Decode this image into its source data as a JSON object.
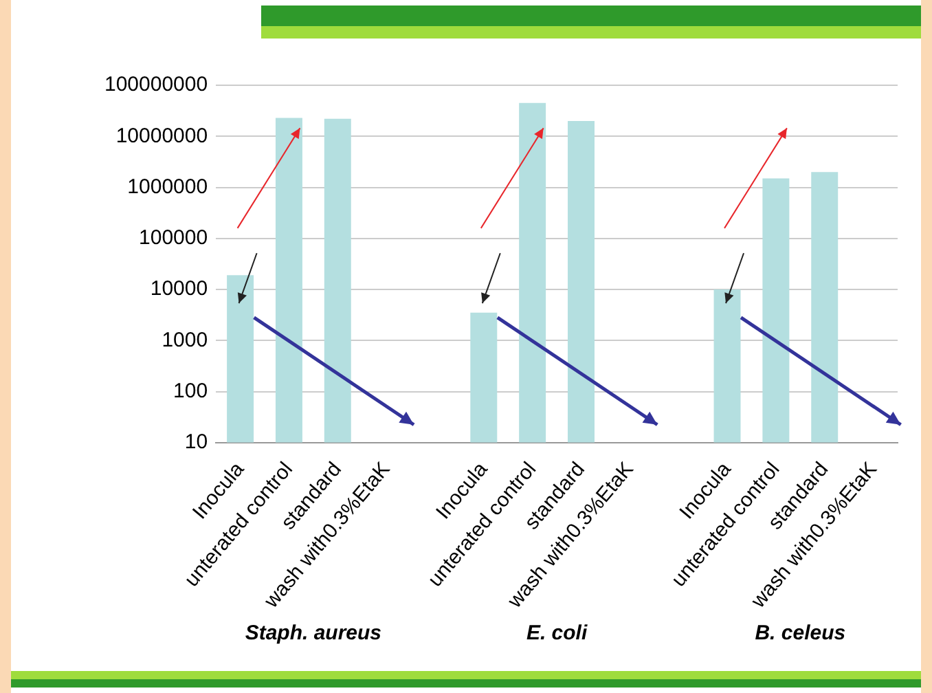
{
  "chart_data": {
    "type": "bar",
    "log": "y",
    "grid": "y",
    "legend": false,
    "color": "#b4dfe0",
    "categories": [
      "Inocula",
      "unterated control",
      "standard",
      "wash with0.3%EtaK",
      null,
      "Inocula",
      "unterated control",
      "standard",
      "wash with0.3%EtaK",
      null,
      "Inocula",
      "unterated control",
      "standard",
      "wash with0.3%EtaK"
    ],
    "values": [
      19000,
      23000000,
      22000000,
      null,
      null,
      3500,
      45000000,
      20000000,
      null,
      null,
      10000,
      1500000,
      2000000,
      null
    ],
    "ylim": [
      10,
      100000000
    ],
    "yticks": [
      10,
      100,
      1000,
      10000,
      100000,
      1000000,
      10000000,
      100000000
    ],
    "annotations": [
      "Staph. aureus",
      "E. coli",
      "B. celeus"
    ]
  }
}
